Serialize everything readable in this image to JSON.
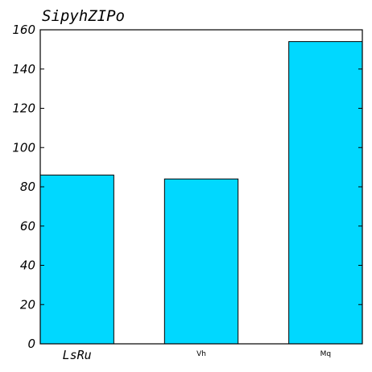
{
  "chart_data": {
    "type": "bar",
    "title": "SipyhZIPo",
    "categories": [
      "LsRu",
      "Vh",
      "Mq"
    ],
    "values": [
      86,
      84,
      154
    ],
    "ylim": [
      0,
      160
    ],
    "yticks": [
      0,
      20,
      40,
      60,
      80,
      100,
      120,
      140,
      160
    ],
    "xlabel": "",
    "ylabel": "",
    "grid": false,
    "bar_color": "#00d8ff",
    "edge_color": "#000000"
  }
}
